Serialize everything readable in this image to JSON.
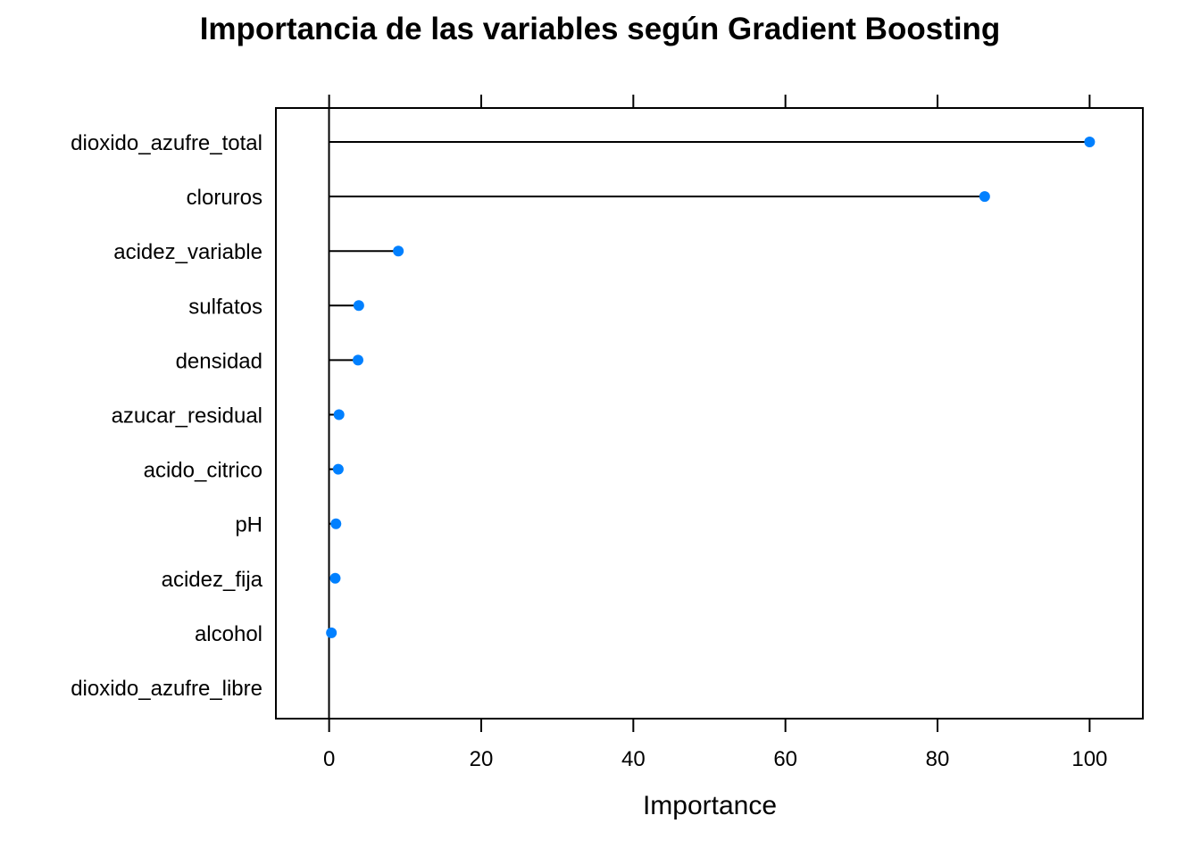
{
  "chart_data": {
    "type": "scatter",
    "style": "lollipop (dot plot with segments from 0)",
    "title": "Importancia de las variables según Gradient Boosting",
    "xlabel": "Importance",
    "ylabel": "",
    "xlim": [
      -7,
      107
    ],
    "xticks": [
      0,
      20,
      40,
      60,
      80,
      100
    ],
    "grid": false,
    "legend": "none",
    "point_color": "#0080FF",
    "segment_color": "#000000",
    "categories": [
      "dioxido_azufre_total",
      "cloruros",
      "acidez_variable",
      "sulfatos",
      "densidad",
      "azucar_residual",
      "acido_citrico",
      "pH",
      "acidez_fija",
      "alcohol",
      "dioxido_azufre_libre"
    ],
    "values": [
      100,
      86.2,
      9.1,
      3.9,
      3.8,
      1.3,
      1.2,
      0.9,
      0.8,
      0.3,
      0
    ]
  }
}
